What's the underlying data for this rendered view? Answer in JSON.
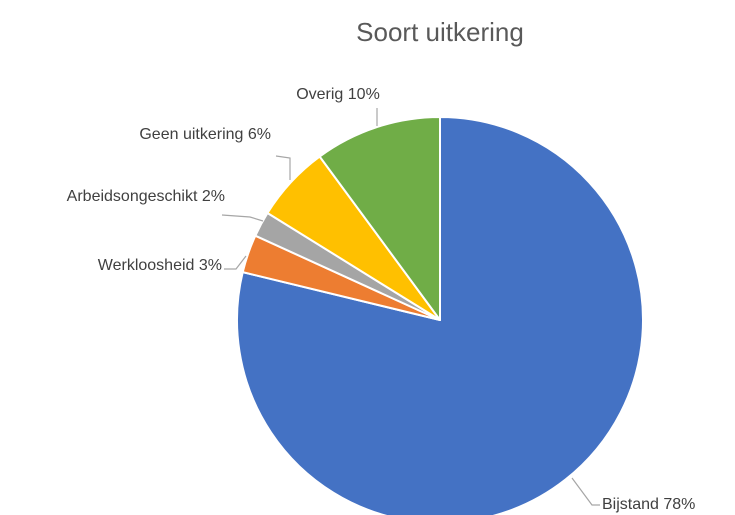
{
  "chart_data": {
    "type": "pie",
    "title": "Soort uitkering",
    "categories": [
      "Bijstand",
      "Werkloosheid",
      "Arbeidsongeschikt",
      "Geen uitkering",
      "Overig"
    ],
    "values": [
      78,
      3,
      2,
      6,
      10
    ],
    "value_labels": [
      "78%",
      "3%",
      "2%",
      "6%",
      "10%"
    ],
    "colors": [
      "#4472c4",
      "#ed7d31",
      "#a5a5a5",
      "#ffc000",
      "#70ad47"
    ]
  }
}
